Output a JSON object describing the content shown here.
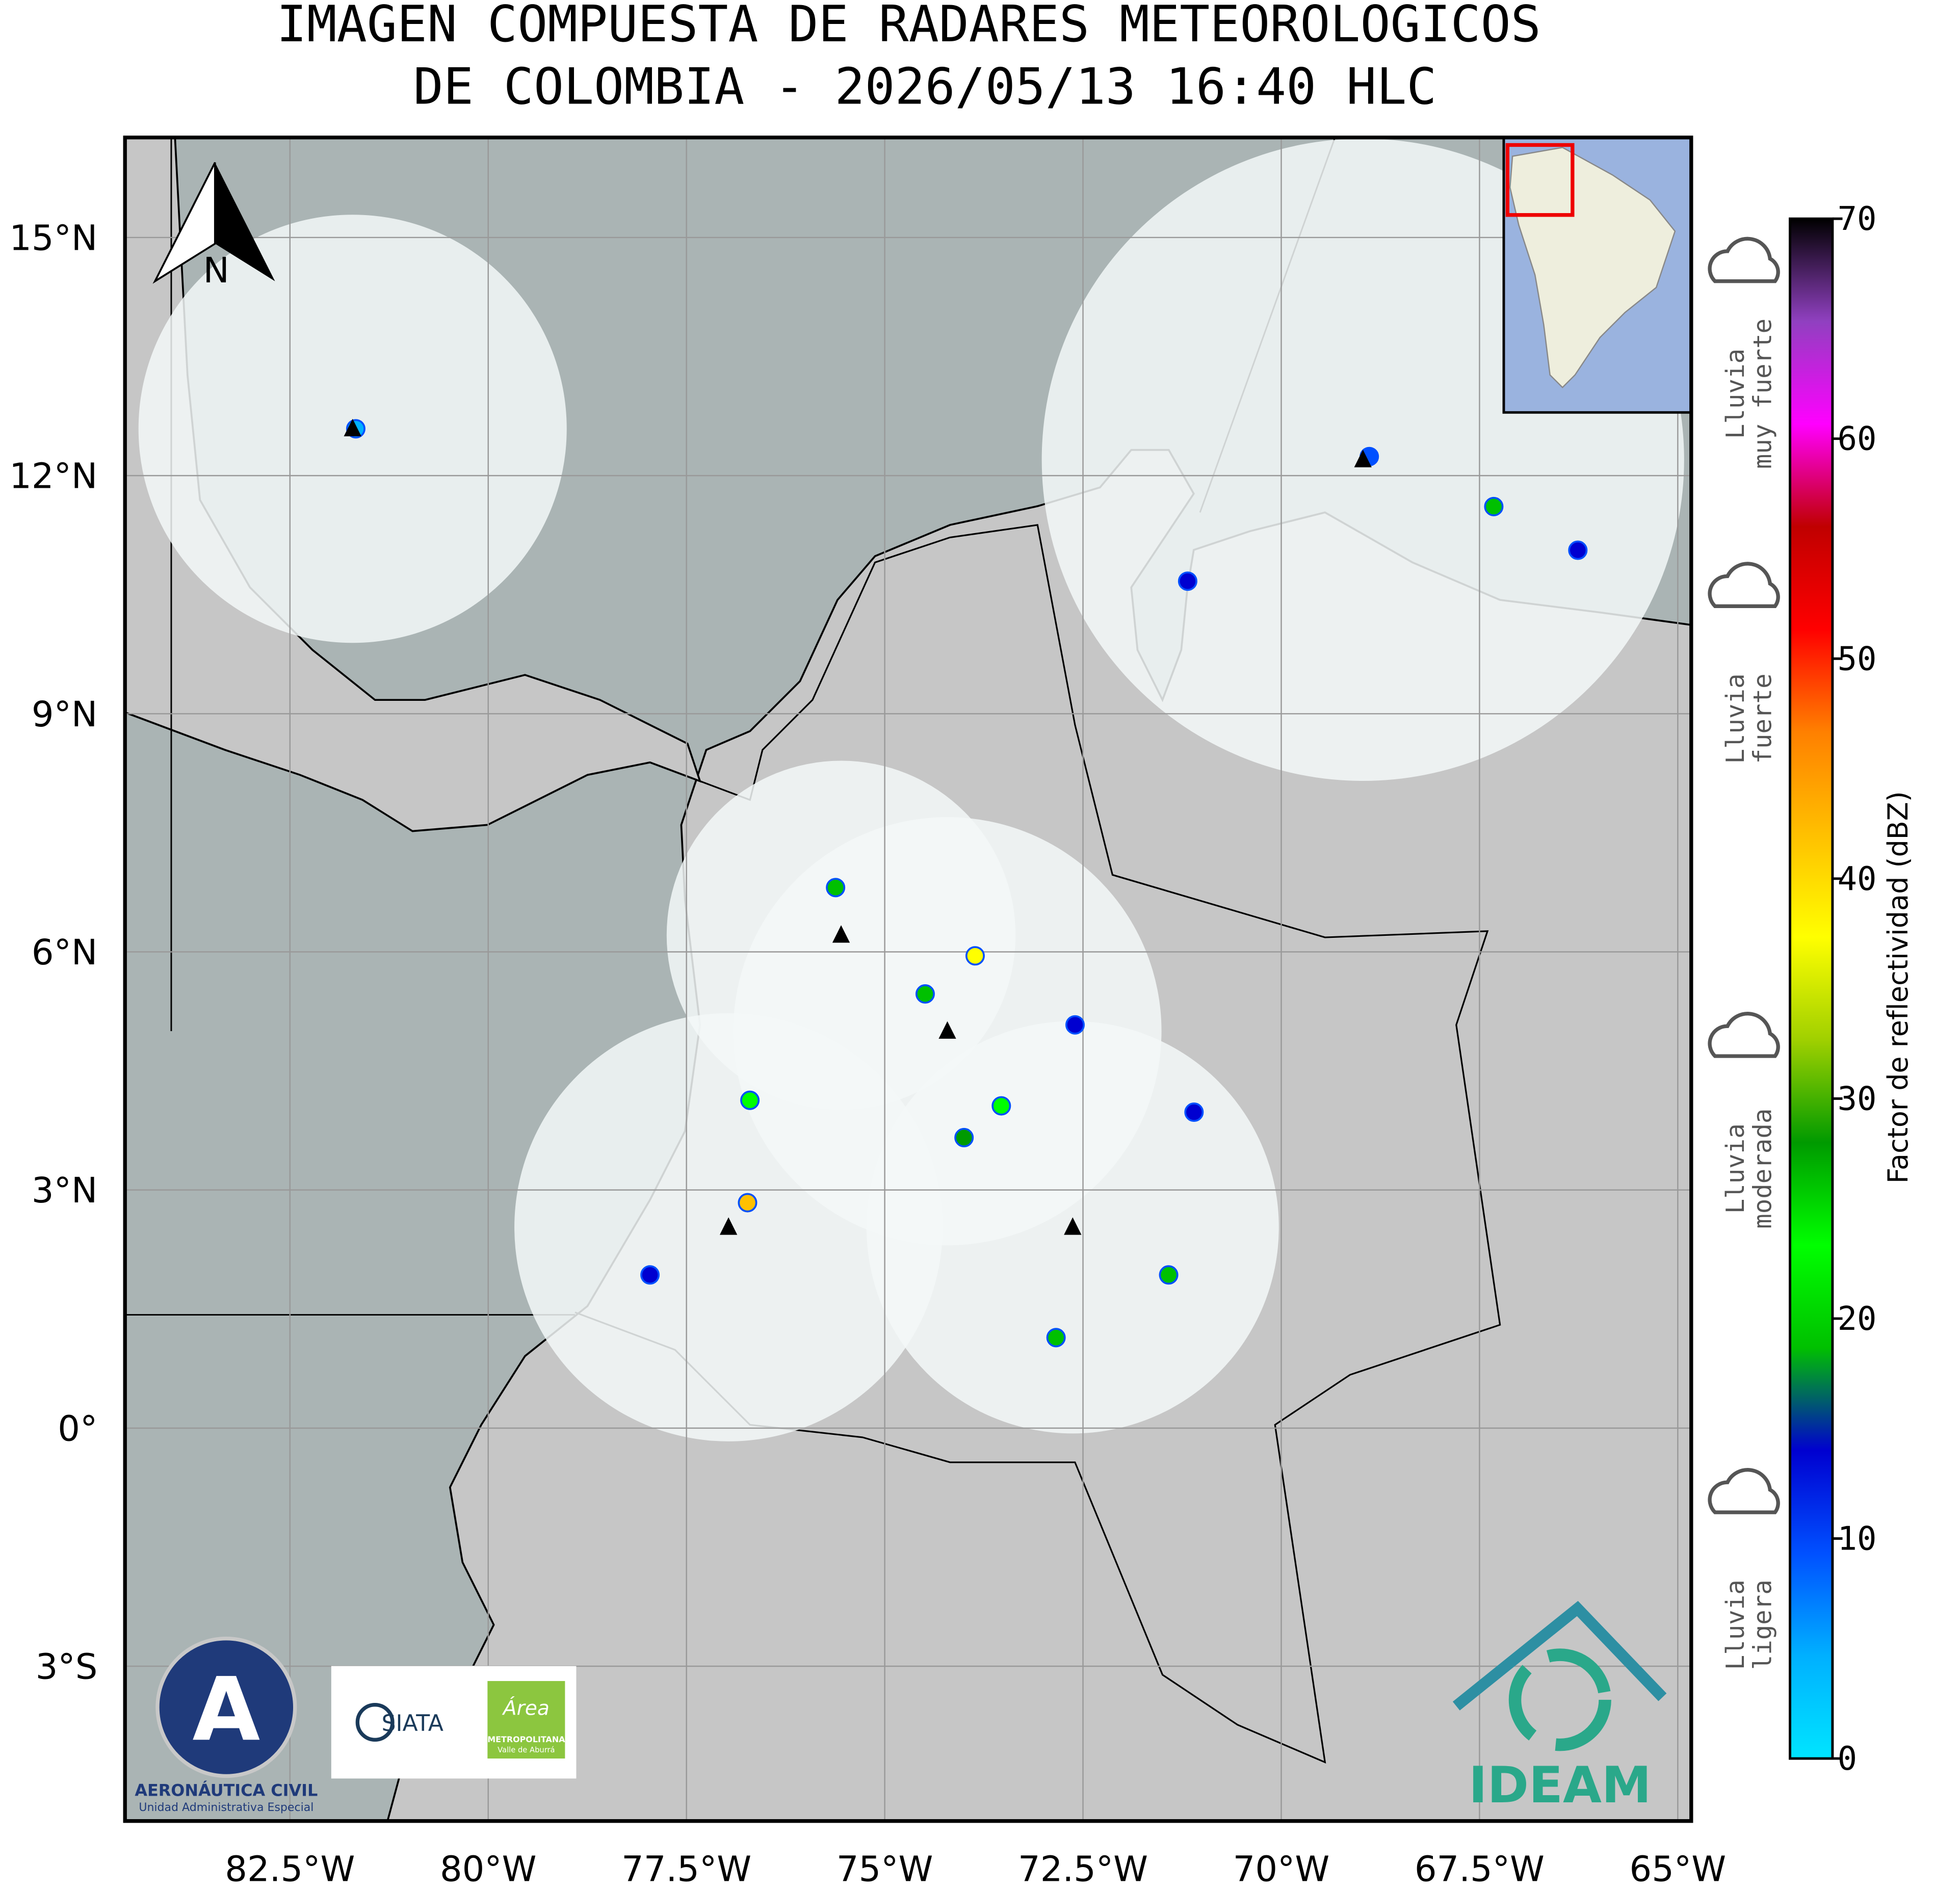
{
  "title": [
    "IMAGEN COMPUESTA DE RADARES METEOROLOGICOS",
    "DE COLOMBIA - 2026/05/13 16:40 HLC"
  ],
  "map": {
    "xlim": [
      -84.58,
      -64.83
    ],
    "ylim": [
      -4.95,
      16.26
    ],
    "xticks": [
      {
        "value": -82.5,
        "label": "82.5°W"
      },
      {
        "value": -80,
        "label": "80°W"
      },
      {
        "value": -77.5,
        "label": "77.5°W"
      },
      {
        "value": -75,
        "label": "75°W"
      },
      {
        "value": -72.5,
        "label": "72.5°W"
      },
      {
        "value": -70,
        "label": "70°W"
      },
      {
        "value": -67.5,
        "label": "67.5°W"
      },
      {
        "value": -65,
        "label": "65°W"
      }
    ],
    "yticks": [
      {
        "value": 15,
        "label": "15°N"
      },
      {
        "value": 12,
        "label": "12°N"
      },
      {
        "value": 9,
        "label": "9°N"
      },
      {
        "value": 6,
        "label": "6°N"
      },
      {
        "value": 3,
        "label": "3°N"
      },
      {
        "value": 0,
        "label": "0°"
      },
      {
        "value": -3,
        "label": "3°S"
      }
    ],
    "grid": true,
    "compass": "N",
    "radars": [
      {
        "lon": -81.71,
        "lat": 12.59,
        "range": 2.7
      },
      {
        "lon": -68.97,
        "lat": 12.2,
        "range": 4.05
      },
      {
        "lon": -75.55,
        "lat": 6.21,
        "range": 2.2
      },
      {
        "lon": -74.21,
        "lat": 5.0,
        "range": 2.7
      },
      {
        "lon": -76.97,
        "lat": 2.53,
        "range": 2.7
      },
      {
        "lon": -72.63,
        "lat": 2.53,
        "range": 2.6
      }
    ],
    "echoes": [
      {
        "lon": -75.62,
        "lat": 6.81,
        "dbz": 20
      },
      {
        "lon": -73.86,
        "lat": 5.95,
        "dbz": 35
      },
      {
        "lon": -74.0,
        "lat": 3.66,
        "dbz": 30
      },
      {
        "lon": -73.53,
        "lat": 4.06,
        "dbz": 25
      },
      {
        "lon": -76.73,
        "lat": 2.84,
        "dbz": 40
      },
      {
        "lon": -71.1,
        "lat": 3.98,
        "dbz": 15
      },
      {
        "lon": -67.32,
        "lat": 11.61,
        "dbz": 18
      },
      {
        "lon": -66.26,
        "lat": 11.06,
        "dbz": 12
      },
      {
        "lon": -68.89,
        "lat": 12.24,
        "dbz": 8
      },
      {
        "lon": -81.67,
        "lat": 12.59,
        "dbz": 6
      },
      {
        "lon": -76.7,
        "lat": 4.13,
        "dbz": 22
      },
      {
        "lon": -72.84,
        "lat": 1.14,
        "dbz": 18
      },
      {
        "lon": -71.42,
        "lat": 1.93,
        "dbz": 20
      },
      {
        "lon": -74.49,
        "lat": 5.47,
        "dbz": 20
      },
      {
        "lon": -72.6,
        "lat": 5.08,
        "dbz": 15
      },
      {
        "lon": -77.96,
        "lat": 1.93,
        "dbz": 15
      },
      {
        "lon": -71.18,
        "lat": 10.67,
        "dbz": 15
      }
    ]
  },
  "colorbar": {
    "lim": [
      0,
      70
    ],
    "ticks": [
      0,
      10,
      20,
      30,
      40,
      50,
      60,
      70
    ],
    "label": "Factor de reflectividad (dBZ)",
    "colors": [
      "#00e5ff",
      "#00b0ff",
      "#0050ff",
      "#0000d0",
      "#00c000",
      "#00ff00",
      "#009a00",
      "#a0d000",
      "#ffff00",
      "#ffc000",
      "#ff8000",
      "#ff0000",
      "#c00000",
      "#ff00ff",
      "#9040c0",
      "#000000"
    ]
  },
  "rain_classes": [
    [
      "Lluvia",
      "ligera"
    ],
    [
      "Lluvia",
      "moderada"
    ],
    [
      "Lluvia",
      "fuerte"
    ],
    [
      "Lluvia",
      "muy fuerte"
    ]
  ],
  "logos": {
    "aeronautica": [
      "AERONÁUTICA CIVIL",
      "Unidad Administrativa Especial"
    ],
    "siata": "SIATA",
    "area": [
      "Área",
      "METROPOLITANA",
      "Valle de Aburrá"
    ],
    "ideam": "IDEAM"
  }
}
